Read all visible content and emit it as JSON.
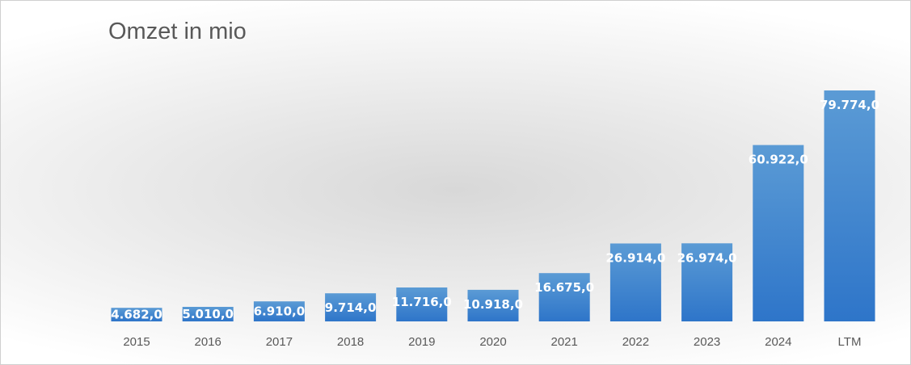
{
  "chart_data": {
    "type": "bar",
    "title": "Omzet in mio",
    "categories": [
      "2015",
      "2016",
      "2017",
      "2018",
      "2019",
      "2020",
      "2021",
      "2022",
      "2023",
      "2024",
      "LTM"
    ],
    "values": [
      4682.0,
      5010.0,
      6910.0,
      9714.0,
      11716.0,
      10918.0,
      16675.0,
      26914.0,
      26974.0,
      60922.0,
      79774.0
    ],
    "data_labels": [
      "4.682,0",
      "5.010,0",
      "6.910,0",
      "9.714,0",
      "11.716,0",
      "10.918,0",
      "16.675,0",
      "26.914,0",
      "26.974,0",
      "60.922,0",
      "79.774,0"
    ],
    "xlabel": "",
    "ylabel": "",
    "ylim": [
      0,
      90000
    ],
    "grid": false,
    "legend": "none",
    "bar_color_top": "#5b9bd5",
    "bar_color_bottom": "#2e75c9"
  }
}
